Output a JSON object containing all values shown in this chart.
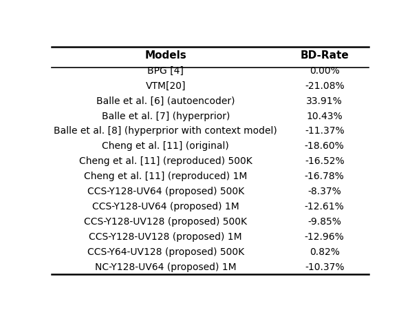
{
  "title_col1": "Models",
  "title_col2": "BD-Rate",
  "rows": [
    [
      "BPG [4]",
      "0.00%"
    ],
    [
      "VTM[20]",
      "-21.08%"
    ],
    [
      "Balle et al. [6] (autoencoder)",
      "33.91%"
    ],
    [
      "Balle et al. [7] (hyperprior)",
      "10.43%"
    ],
    [
      "Balle et al. [8] (hyperprior with context model)",
      "-11.37%"
    ],
    [
      "Cheng et al. [11] (original)",
      "-18.60%"
    ],
    [
      "Cheng et al. [11] (reproduced) 500K",
      "-16.52%"
    ],
    [
      "Cheng et al. [11] (reproduced) 1M",
      "-16.78%"
    ],
    [
      "CCS-Y128-UV64 (proposed) 500K",
      "-8.37%"
    ],
    [
      "CCS-Y128-UV64 (proposed) 1M",
      "-12.61%"
    ],
    [
      "CCS-Y128-UV128 (proposed) 500K",
      "-9.85%"
    ],
    [
      "CCS-Y128-UV128 (proposed) 1M",
      "-12.96%"
    ],
    [
      "CCS-Y64-UV128 (proposed) 500K",
      "0.82%"
    ],
    [
      "NC-Y128-UV64 (proposed) 1M",
      "-10.37%"
    ]
  ],
  "fig_width": 5.96,
  "fig_height": 4.64,
  "dpi": 100,
  "background_color": "#ffffff",
  "header_fontsize": 11,
  "cell_fontsize": 10
}
